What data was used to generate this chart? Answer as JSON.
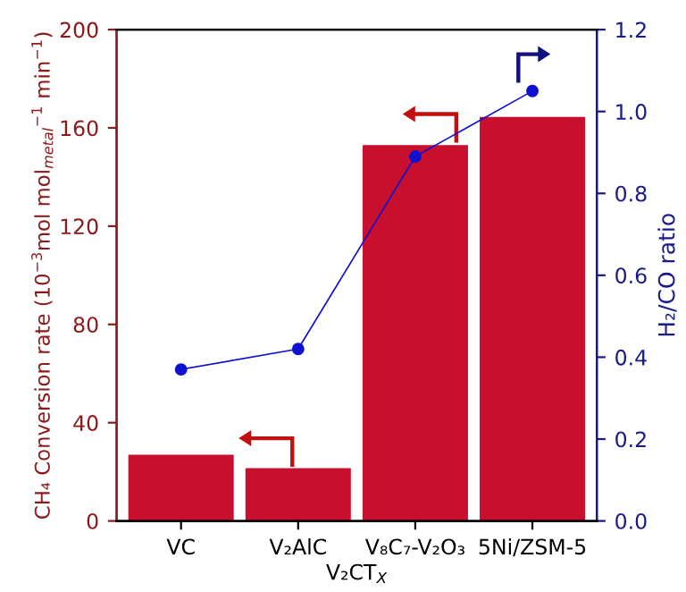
{
  "chart_data": {
    "type": "bar",
    "xlabel": "V₂CT$_{X}$",
    "ylabel": "CH₄ Conversion rate (10$^{−3}$mol mol$_{metal}$$^{−1}$ min$^{−1}$)",
    "y2label": "H₂/CO ratio",
    "categories": [
      "VC",
      "V₂AlC",
      "V₈C₇-V₂O₃",
      "5Ni/ZSM-5"
    ],
    "series": [
      {
        "color": "#c8102e",
        "values": [
          27,
          21.5,
          153,
          164.5
        ]
      },
      {
        "type": "line",
        "axis": "y2",
        "color": "#1010d0",
        "marker": "circle",
        "line_style": "solid",
        "values": [
          0.37,
          0.42,
          0.89,
          1.05
        ]
      }
    ],
    "ylim": [
      0,
      200
    ],
    "yticks": [
      0,
      40,
      80,
      120,
      160,
      200
    ],
    "y2lim": [
      0,
      1.2
    ],
    "y2ticks": [
      {
        "value": 0,
        "label": "0.0"
      },
      0.2,
      0.4,
      0.6,
      0.8,
      {
        "value": 1,
        "label": "1.0"
      },
      1.2
    ],
    "grid": false,
    "legend": false
  }
}
